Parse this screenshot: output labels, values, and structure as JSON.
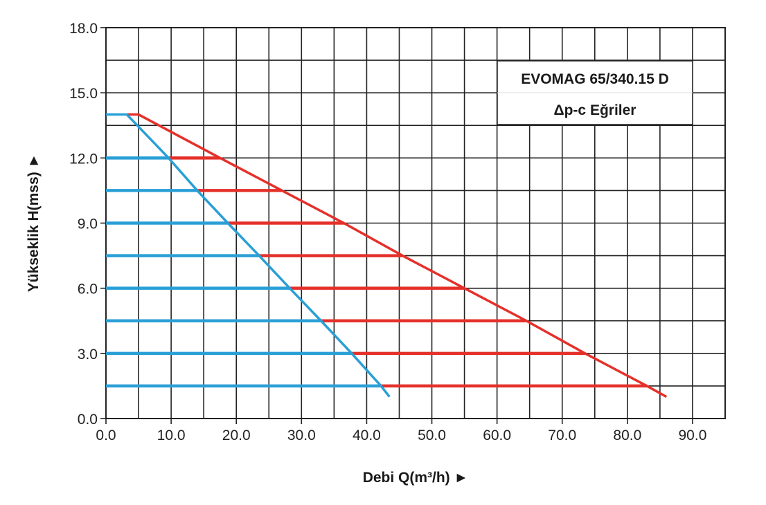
{
  "chart_data": {
    "type": "line",
    "title": "EVOMAG 65/340.15 D",
    "subtitle": "Δp-c Eğriler",
    "xlabel": "Debi Q(m³/h) ►",
    "ylabel": "Yükseklik H(mss) ►",
    "xlim": [
      0,
      95
    ],
    "ylim": [
      0,
      18
    ],
    "xticks": [
      0,
      10,
      20,
      30,
      40,
      50,
      60,
      70,
      80,
      90
    ],
    "xtick_labels": [
      "0.0",
      "10.0",
      "20.0",
      "30.0",
      "40.0",
      "50.0",
      "60.0",
      "70.0",
      "80.0",
      "90.0"
    ],
    "yticks": [
      0,
      3,
      6,
      9,
      12,
      15,
      18
    ],
    "ytick_labels": [
      "0.0",
      "3.0",
      "6.0",
      "9.0",
      "12.0",
      "15.0",
      "18.0"
    ],
    "grid": {
      "x_step": 5,
      "y_step": 1.5
    },
    "legend": "top-right",
    "colors": {
      "min_curve": "#2a9fd6",
      "max_curve": "#e5302a",
      "grid": "#222222"
    },
    "series": [
      {
        "x": [
          0,
          3.2,
          9.6,
          14,
          18.7,
          23.5,
          28.2,
          33,
          37.7,
          42.2,
          43.5
        ],
        "y": [
          14,
          14,
          12,
          10.5,
          9,
          7.5,
          6,
          4.5,
          3,
          1.5,
          1.0
        ]
      },
      {
        "x": [
          3.2,
          5,
          17.5,
          27,
          36.5,
          45.5,
          55,
          64.5,
          73.5,
          83,
          86
        ],
        "y": [
          14,
          14,
          12,
          10.5,
          9,
          7.5,
          6,
          4.5,
          3,
          1.5,
          1.0
        ]
      }
    ],
    "setpoint_lines": [
      {
        "y": 12,
        "x_min_end": 9.6,
        "x_max_end": 17.5
      },
      {
        "y": 10.5,
        "x_min_end": 14,
        "x_max_end": 27
      },
      {
        "y": 9,
        "x_min_end": 18.7,
        "x_max_end": 36.5
      },
      {
        "y": 7.5,
        "x_min_end": 23.5,
        "x_max_end": 45.5
      },
      {
        "y": 6,
        "x_min_end": 28.2,
        "x_max_end": 55
      },
      {
        "y": 4.5,
        "x_min_end": 33,
        "x_max_end": 64.5
      },
      {
        "y": 3,
        "x_min_end": 37.7,
        "x_max_end": 73.5
      },
      {
        "y": 1.5,
        "x_min_end": 42.2,
        "x_max_end": 83
      }
    ]
  }
}
